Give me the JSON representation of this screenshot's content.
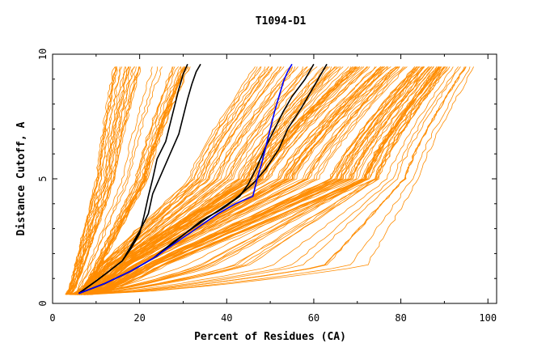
{
  "chart_data": {
    "type": "line",
    "title": "T1094-D1",
    "xlabel": "Percent of Residues (CA)",
    "ylabel": "Distance Cutoff, A",
    "xlim": [
      0,
      102
    ],
    "ylim": [
      0,
      10
    ],
    "x_ticks": [
      0,
      20,
      40,
      60,
      80,
      100
    ],
    "y_ticks": [
      0,
      5,
      10
    ],
    "x_tick_labels": [
      "0",
      "20",
      "40",
      "60",
      "80",
      "100"
    ],
    "y_tick_labels": [
      "0",
      "5",
      "10"
    ],
    "grid": false,
    "legend": "none",
    "colors": {
      "background_series": "#ff8c00",
      "highlight_black": "#000000",
      "highlight_blue": "#0000ff",
      "frame": "#000000"
    },
    "series": [
      {
        "style": "black",
        "points": [
          [
            6,
            0.4
          ],
          [
            10,
            0.9
          ],
          [
            13,
            1.3
          ],
          [
            16,
            1.7
          ],
          [
            18,
            2.2
          ],
          [
            20,
            2.8
          ],
          [
            21,
            3.5
          ],
          [
            22,
            4.3
          ],
          [
            23,
            5.0
          ],
          [
            24,
            5.8
          ],
          [
            26,
            6.5
          ],
          [
            27,
            7.2
          ],
          [
            28,
            7.9
          ],
          [
            29,
            8.6
          ],
          [
            30,
            9.2
          ],
          [
            31,
            9.6
          ]
        ]
      },
      {
        "style": "black",
        "points": [
          [
            6,
            0.4
          ],
          [
            10,
            0.9
          ],
          [
            13,
            1.3
          ],
          [
            16,
            1.7
          ],
          [
            18,
            2.3
          ],
          [
            20,
            2.9
          ],
          [
            22,
            3.6
          ],
          [
            23,
            4.4
          ],
          [
            25,
            5.2
          ],
          [
            27,
            6.0
          ],
          [
            29,
            6.8
          ],
          [
            30,
            7.5
          ],
          [
            31,
            8.2
          ],
          [
            32,
            8.8
          ],
          [
            33,
            9.3
          ],
          [
            34,
            9.6
          ]
        ]
      },
      {
        "style": "black",
        "points": [
          [
            6,
            0.4
          ],
          [
            12,
            0.8
          ],
          [
            18,
            1.3
          ],
          [
            23,
            1.8
          ],
          [
            28,
            2.5
          ],
          [
            32,
            3.0
          ],
          [
            37,
            3.6
          ],
          [
            42,
            4.2
          ],
          [
            46,
            4.8
          ],
          [
            49,
            5.4
          ],
          [
            52,
            6.2
          ],
          [
            54,
            7.0
          ],
          [
            57,
            7.8
          ],
          [
            59,
            8.4
          ],
          [
            61,
            9.0
          ],
          [
            63,
            9.6
          ]
        ]
      },
      {
        "style": "black",
        "points": [
          [
            6,
            0.4
          ],
          [
            12,
            0.8
          ],
          [
            18,
            1.3
          ],
          [
            24,
            1.9
          ],
          [
            29,
            2.6
          ],
          [
            34,
            3.3
          ],
          [
            39,
            3.8
          ],
          [
            43,
            4.3
          ],
          [
            45,
            4.8
          ],
          [
            47,
            5.5
          ],
          [
            49,
            6.3
          ],
          [
            51,
            7.0
          ],
          [
            53,
            7.7
          ],
          [
            55,
            8.3
          ],
          [
            58,
            9.0
          ],
          [
            60,
            9.6
          ]
        ]
      },
      {
        "style": "blue",
        "points": [
          [
            6,
            0.4
          ],
          [
            12,
            0.8
          ],
          [
            18,
            1.3
          ],
          [
            23,
            1.8
          ],
          [
            28,
            2.4
          ],
          [
            33,
            3.0
          ],
          [
            38,
            3.6
          ],
          [
            42,
            4.0
          ],
          [
            46,
            4.3
          ],
          [
            47,
            5.0
          ],
          [
            48,
            5.6
          ],
          [
            49,
            6.3
          ],
          [
            50,
            7.0
          ],
          [
            51,
            7.7
          ],
          [
            52,
            8.3
          ],
          [
            53,
            8.9
          ],
          [
            54,
            9.3
          ],
          [
            55,
            9.6
          ]
        ]
      }
    ],
    "background_family": {
      "count": 170,
      "y_top": 9.6,
      "x_min_start": 3,
      "x_max_end": 98
    }
  }
}
